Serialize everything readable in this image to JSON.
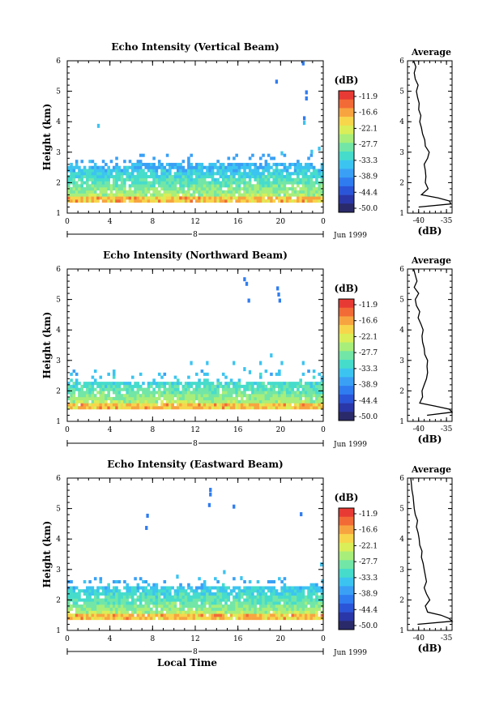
{
  "chart_data": [
    {
      "type": "heatmap",
      "title": "Echo Intensity (Vertical Beam)",
      "ylabel": "Height (km)",
      "xlim": [
        0,
        24
      ],
      "ylim": [
        1,
        6
      ],
      "xticks": [
        "0",
        "4",
        "8",
        "12",
        "16",
        "20",
        "0"
      ],
      "yticks": [
        "1",
        "2",
        "3",
        "4",
        "5",
        "6"
      ],
      "date_label": "8",
      "date_suffix": "Jun 1999",
      "xlabel": "",
      "colorbar": {
        "unit": "(dB)",
        "labels": [
          "-11.9",
          "-16.6",
          "-22.1",
          "-27.7",
          "-33.3",
          "-38.9",
          "-44.4",
          "-50.0"
        ]
      },
      "layer": {
        "base": 1.35,
        "top_profile": [
          2.5,
          2.5,
          2.5,
          2.5,
          2.5,
          2.5,
          2.6,
          2.6,
          2.6,
          2.6,
          2.6,
          2.6,
          2.6,
          2.6,
          2.6,
          2.6,
          2.6,
          2.6,
          2.6,
          2.6,
          2.6,
          2.6,
          2.6,
          2.6,
          2.6
        ],
        "strong_band": [
          1.35,
          1.55
        ]
      },
      "sparse_echoes": [
        [
          22.0,
          5.9
        ],
        [
          19.5,
          5.3
        ],
        [
          22.3,
          4.95
        ],
        [
          22.3,
          4.75
        ],
        [
          22.1,
          4.1
        ],
        [
          22.1,
          3.95
        ],
        [
          2.8,
          3.85
        ],
        [
          23.5,
          3.1
        ],
        [
          22.8,
          3.0
        ],
        [
          20.0,
          2.95
        ]
      ],
      "profile": {
        "title": "Average",
        "xlabel": "(dB)",
        "xlim": [
          -42,
          -34
        ],
        "xticks": [
          "-40",
          "-35"
        ],
        "heights": [
          1.2,
          1.3,
          1.4,
          1.5,
          1.6,
          1.8,
          2.0,
          2.2,
          2.4,
          2.6,
          2.8,
          3.0,
          3.2,
          3.4,
          3.6,
          3.8,
          4.0,
          4.2,
          4.4,
          4.6,
          4.8,
          5.0,
          5.2,
          5.4,
          5.6,
          5.8,
          6.0
        ],
        "values": [
          -40,
          -34.2,
          -34.5,
          -36.5,
          -39.5,
          -38.3,
          -38.8,
          -38.7,
          -38.8,
          -39,
          -38.4,
          -38.1,
          -38.8,
          -38.9,
          -39.3,
          -39.5,
          -39.8,
          -39.6,
          -40,
          -39.9,
          -40.2,
          -40.4,
          -40.1,
          -40.6,
          -40.8,
          -40.5,
          -40.9
        ]
      }
    },
    {
      "type": "heatmap",
      "title": "Echo Intensity (Northward Beam)",
      "ylabel": "Height (km)",
      "xlim": [
        0,
        24
      ],
      "ylim": [
        1,
        6
      ],
      "xticks": [
        "0",
        "4",
        "8",
        "12",
        "16",
        "20",
        "0"
      ],
      "yticks": [
        "1",
        "2",
        "3",
        "4",
        "5",
        "6"
      ],
      "date_label": "8",
      "date_suffix": "Jun 1999",
      "xlabel": "",
      "colorbar": {
        "unit": "(dB)",
        "labels": [
          "-11.9",
          "-16.6",
          "-22.1",
          "-27.7",
          "-33.3",
          "-38.9",
          "-44.4",
          "-50.0"
        ]
      },
      "layer": {
        "base": 1.4,
        "top_profile": [
          2.3,
          2.3,
          2.3,
          2.3,
          2.3,
          2.3,
          2.3,
          2.3,
          2.3,
          2.3,
          2.3,
          2.3,
          2.3,
          2.3,
          2.3,
          2.3,
          2.3,
          2.3,
          2.3,
          2.3,
          2.3,
          2.3,
          2.3,
          2.3,
          2.3
        ],
        "strong_band": [
          1.4,
          1.6
        ]
      },
      "sparse_echoes": [
        [
          16.5,
          5.65
        ],
        [
          16.7,
          5.5
        ],
        [
          16.9,
          4.95
        ],
        [
          19.6,
          5.35
        ],
        [
          19.7,
          5.15
        ],
        [
          19.8,
          4.95
        ],
        [
          11.5,
          2.9
        ],
        [
          13.0,
          2.9
        ],
        [
          15.5,
          2.9
        ],
        [
          18.0,
          2.9
        ],
        [
          20.0,
          2.9
        ],
        [
          22.0,
          2.9
        ],
        [
          19.0,
          3.15
        ],
        [
          17.0,
          2.6
        ],
        [
          16.5,
          2.7
        ]
      ],
      "profile": {
        "title": "Average",
        "xlabel": "(dB)",
        "xlim": [
          -42,
          -34
        ],
        "xticks": [
          "-40",
          "-35"
        ],
        "heights": [
          1.2,
          1.3,
          1.4,
          1.5,
          1.6,
          1.8,
          2.0,
          2.2,
          2.4,
          2.6,
          2.8,
          3.0,
          3.2,
          3.4,
          3.6,
          3.8,
          4.0,
          4.2,
          4.4,
          4.6,
          4.8,
          5.0,
          5.2,
          5.4,
          5.6,
          5.8,
          6.0
        ],
        "values": [
          -38.5,
          -34,
          -34.5,
          -37,
          -39.8,
          -39.3,
          -39.4,
          -39.0,
          -38.6,
          -38.4,
          -38.5,
          -38.4,
          -38.9,
          -39,
          -39.3,
          -39.4,
          -39.2,
          -39.6,
          -40.1,
          -39.8,
          -40.4,
          -40.6,
          -40.0,
          -40.8,
          -40.3,
          -40.6,
          -40.9
        ]
      }
    },
    {
      "type": "heatmap",
      "title": "Echo Intensity (Eastward Beam)",
      "ylabel": "Height (km)",
      "xlim": [
        0,
        24
      ],
      "ylim": [
        1,
        6
      ],
      "xticks": [
        "0",
        "4",
        "8",
        "12",
        "16",
        "20",
        "0"
      ],
      "yticks": [
        "1",
        "2",
        "3",
        "4",
        "5",
        "6"
      ],
      "date_label": "8",
      "date_suffix": "Jun 1999",
      "xlabel": "Local Time",
      "colorbar": {
        "unit": "(dB)",
        "labels": [
          "-11.9",
          "-16.6",
          "-22.1",
          "-27.7",
          "-33.3",
          "-38.9",
          "-44.4",
          "-50.0"
        ]
      },
      "layer": {
        "base": 1.35,
        "top_profile": [
          2.4,
          2.4,
          2.4,
          2.4,
          2.4,
          2.4,
          2.4,
          2.4,
          2.4,
          2.4,
          2.4,
          2.4,
          2.4,
          2.4,
          2.4,
          2.4,
          2.4,
          2.4,
          2.4,
          2.4,
          2.4,
          2.4,
          2.4,
          2.4,
          2.4
        ],
        "strong_band": [
          1.35,
          1.55
        ]
      },
      "sparse_echoes": [
        [
          13.3,
          5.6
        ],
        [
          13.3,
          5.45
        ],
        [
          13.2,
          5.1
        ],
        [
          15.5,
          5.05
        ],
        [
          7.4,
          4.75
        ],
        [
          7.3,
          4.35
        ],
        [
          21.8,
          4.8
        ],
        [
          14.6,
          2.9
        ],
        [
          16.2,
          2.7
        ],
        [
          23.8,
          2.6
        ],
        [
          10.2,
          2.75
        ],
        [
          23.7,
          3.15
        ]
      ],
      "profile": {
        "title": "Average",
        "xlabel": "(dB)",
        "xlim": [
          -42,
          -34
        ],
        "xticks": [
          "-40",
          "-35"
        ],
        "heights": [
          1.2,
          1.3,
          1.4,
          1.5,
          1.6,
          1.8,
          2.0,
          2.2,
          2.4,
          2.6,
          2.8,
          3.0,
          3.2,
          3.4,
          3.6,
          3.8,
          4.0,
          4.2,
          4.4,
          4.6,
          4.8,
          5.0,
          5.2,
          5.4,
          5.6,
          5.8,
          6.0
        ],
        "values": [
          -40.2,
          -34.0,
          -34.6,
          -36.0,
          -38.4,
          -38.8,
          -38.0,
          -38.6,
          -39.0,
          -38.6,
          -38.8,
          -39.0,
          -39.2,
          -39.5,
          -39.4,
          -39.8,
          -39.9,
          -40.1,
          -40.4,
          -40.2,
          -40.6,
          -40.8,
          -40.9,
          -41,
          -41.2,
          -41.3,
          -41.4
        ]
      }
    }
  ]
}
